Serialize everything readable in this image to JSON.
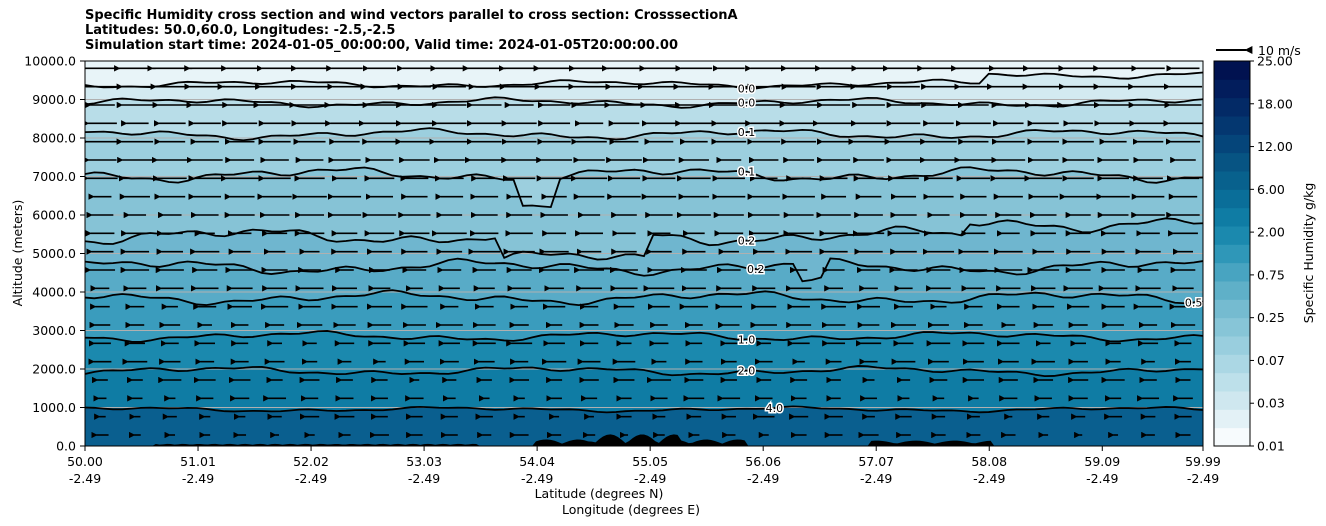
{
  "chart_data": {
    "type": "heatmap",
    "title_lines": [
      "Specific Humidity cross section and wind vectors parallel to cross section: CrosssectionA",
      "Latitudes: 50.0,60.0, Longitudes: -2.5,-2.5",
      "Simulation start time: 2024-01-05_00:00:00, Valid time: 2024-01-05T20:00:00.00"
    ],
    "ylabel": "Altitude (meters)",
    "xlabel_lat": "Latitude (degrees N)",
    "xlabel_lon": "Longitude (degrees E)",
    "ylim": [
      0,
      10000
    ],
    "yticks": [
      "0.0",
      "1000.0",
      "2000.0",
      "3000.0",
      "4000.0",
      "5000.0",
      "6000.0",
      "7000.0",
      "8000.0",
      "9000.0",
      "10000.0"
    ],
    "xlim": [
      50.0,
      59.99
    ],
    "xticks": [
      {
        "lat": "50.00",
        "lon": "-2.49"
      },
      {
        "lat": "51.01",
        "lon": "-2.49"
      },
      {
        "lat": "52.02",
        "lon": "-2.49"
      },
      {
        "lat": "53.03",
        "lon": "-2.49"
      },
      {
        "lat": "54.04",
        "lon": "-2.49"
      },
      {
        "lat": "55.05",
        "lon": "-2.49"
      },
      {
        "lat": "56.06",
        "lon": "-2.49"
      },
      {
        "lat": "57.07",
        "lon": "-2.49"
      },
      {
        "lat": "58.08",
        "lon": "-2.49"
      },
      {
        "lat": "59.09",
        "lon": "-2.49"
      },
      {
        "lat": "59.99",
        "lon": "-2.49"
      }
    ],
    "colorbar": {
      "label": "Specific Humidity g/kg",
      "ticks": [
        "0.01",
        "0.03",
        "0.07",
        "0.25",
        "0.75",
        "2.00",
        "6.00",
        "12.00",
        "18.00",
        "25.00"
      ],
      "colors": [
        "#f7fbfd",
        "#e3f1f6",
        "#cfe7ef",
        "#bde0ea",
        "#abd7e4",
        "#99cede",
        "#87c5d7",
        "#75bbd0",
        "#5fb0c8",
        "#48a4c1",
        "#2f97b8",
        "#1b89ae",
        "#0f7ca4",
        "#0a6e99",
        "#08618d",
        "#075483",
        "#05457a",
        "#043770",
        "#032a66",
        "#021d5c",
        "#011250"
      ]
    },
    "contour_levels": [
      {
        "label": "0.0",
        "z": 9400
      },
      {
        "label": "0.0",
        "z": 8920
      },
      {
        "label": "0.1",
        "z": 8100
      },
      {
        "label": "0.1",
        "z": 7050
      },
      {
        "label": "0.2",
        "z": 5450
      },
      {
        "label": "0.2",
        "z": 4650
      },
      {
        "label": "0.5",
        "z": 3850
      },
      {
        "label": "1.0",
        "z": 2850
      },
      {
        "label": "2.0",
        "z": 1950
      },
      {
        "label": "4.0",
        "z": 950
      }
    ],
    "wind": {
      "reference_label": "10 m/s",
      "reference_speed": 10
    }
  }
}
